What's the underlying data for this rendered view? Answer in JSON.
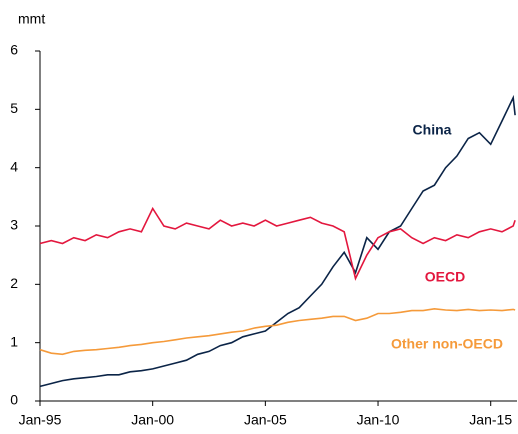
{
  "chart_data": {
    "type": "line",
    "y_label": "mmt",
    "x": [
      "1995-01",
      "1995-07",
      "1996-01",
      "1996-07",
      "1997-01",
      "1997-07",
      "1998-01",
      "1998-07",
      "1999-01",
      "1999-07",
      "2000-01",
      "2000-07",
      "2001-01",
      "2001-07",
      "2002-01",
      "2002-07",
      "2003-01",
      "2003-07",
      "2004-01",
      "2004-07",
      "2005-01",
      "2005-07",
      "2006-01",
      "2006-07",
      "2007-01",
      "2007-07",
      "2008-01",
      "2008-07",
      "2009-01",
      "2009-07",
      "2010-01",
      "2010-07",
      "2011-01",
      "2011-07",
      "2012-01",
      "2012-07",
      "2013-01",
      "2013-07",
      "2014-01",
      "2014-07",
      "2015-01",
      "2015-07",
      "2016-01",
      "2016-02"
    ],
    "series": [
      {
        "name": "China",
        "color": "#0b2447",
        "values": [
          0.25,
          0.3,
          0.35,
          0.38,
          0.4,
          0.42,
          0.45,
          0.45,
          0.5,
          0.52,
          0.55,
          0.6,
          0.65,
          0.7,
          0.8,
          0.85,
          0.95,
          1.0,
          1.1,
          1.15,
          1.2,
          1.35,
          1.5,
          1.6,
          1.8,
          2.0,
          2.3,
          2.55,
          2.2,
          2.8,
          2.6,
          2.9,
          3.0,
          3.3,
          3.6,
          3.7,
          4.0,
          4.2,
          4.5,
          4.6,
          4.4,
          4.8,
          5.2,
          4.9
        ]
      },
      {
        "name": "OECD",
        "color": "#e3173e",
        "values": [
          2.7,
          2.75,
          2.7,
          2.8,
          2.75,
          2.85,
          2.8,
          2.9,
          2.95,
          2.9,
          3.3,
          3.0,
          2.95,
          3.05,
          3.0,
          2.95,
          3.1,
          3.0,
          3.05,
          3.0,
          3.1,
          3.0,
          3.05,
          3.1,
          3.15,
          3.05,
          3.0,
          2.9,
          2.1,
          2.5,
          2.8,
          2.9,
          2.95,
          2.8,
          2.7,
          2.8,
          2.75,
          2.85,
          2.8,
          2.9,
          2.95,
          2.9,
          3.0,
          3.1
        ]
      },
      {
        "name": "Other non-OECD",
        "color": "#f59a3a",
        "values": [
          0.88,
          0.82,
          0.8,
          0.85,
          0.87,
          0.88,
          0.9,
          0.92,
          0.95,
          0.97,
          1.0,
          1.02,
          1.05,
          1.08,
          1.1,
          1.12,
          1.15,
          1.18,
          1.2,
          1.25,
          1.28,
          1.3,
          1.35,
          1.38,
          1.4,
          1.42,
          1.45,
          1.45,
          1.38,
          1.42,
          1.5,
          1.5,
          1.52,
          1.55,
          1.55,
          1.58,
          1.56,
          1.55,
          1.57,
          1.55,
          1.56,
          1.55,
          1.57,
          1.56
        ]
      }
    ],
    "xlim": [
      "1995-01",
      "2016-03"
    ],
    "xticks": [
      {
        "value": "1995-01",
        "label": "Jan-95"
      },
      {
        "value": "2000-01",
        "label": "Jan-00"
      },
      {
        "value": "2005-01",
        "label": "Jan-05"
      },
      {
        "value": "2010-01",
        "label": "Jan-10"
      },
      {
        "value": "2015-01",
        "label": "Jan-15"
      }
    ],
    "ylim": [
      0,
      6
    ],
    "yticks": [
      0,
      1,
      2,
      3,
      4,
      5,
      6
    ],
    "grid": false
  }
}
